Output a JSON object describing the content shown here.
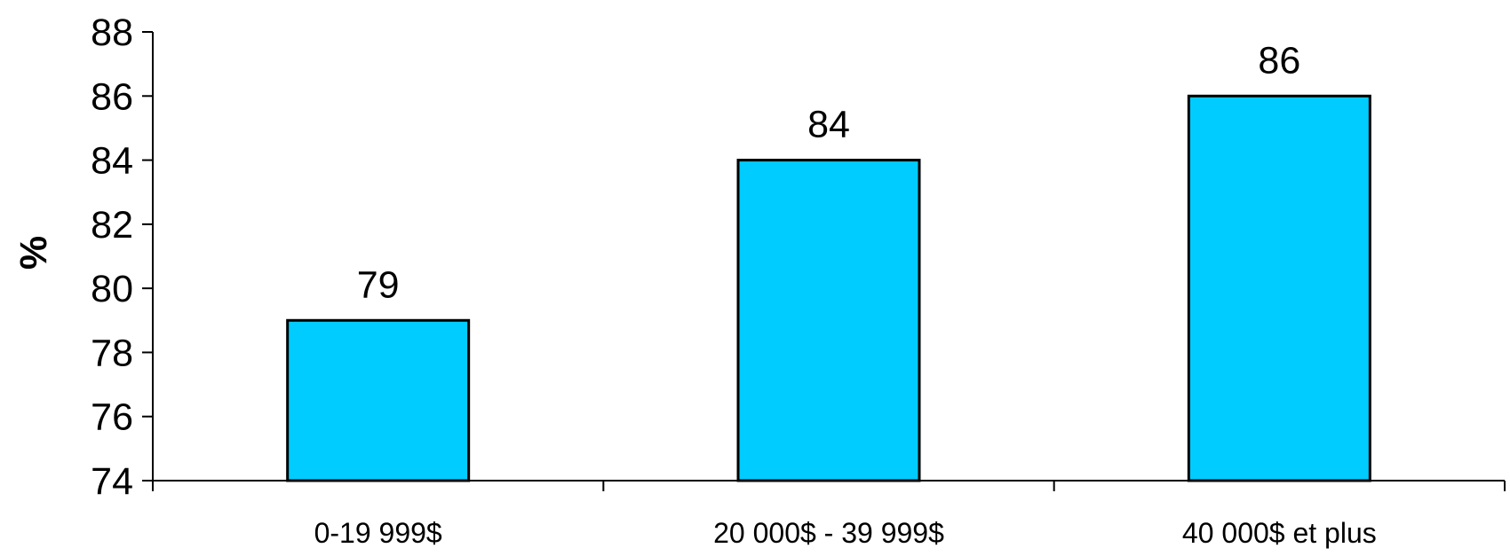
{
  "chart_data": {
    "type": "bar",
    "categories": [
      "0-19 999$",
      "20 000$ - 39 999$",
      "40 000$ et plus"
    ],
    "values": [
      79,
      84,
      86
    ],
    "data_labels": [
      "79",
      "84",
      "86"
    ],
    "title": "",
    "xlabel": "",
    "ylabel": "%",
    "ylim": [
      74,
      88
    ],
    "yticks": [
      74,
      76,
      78,
      80,
      82,
      84,
      86,
      88
    ],
    "grid": false,
    "legend": "none",
    "bar_color": "#00CCFF",
    "bar_edge_color": "#000000"
  }
}
